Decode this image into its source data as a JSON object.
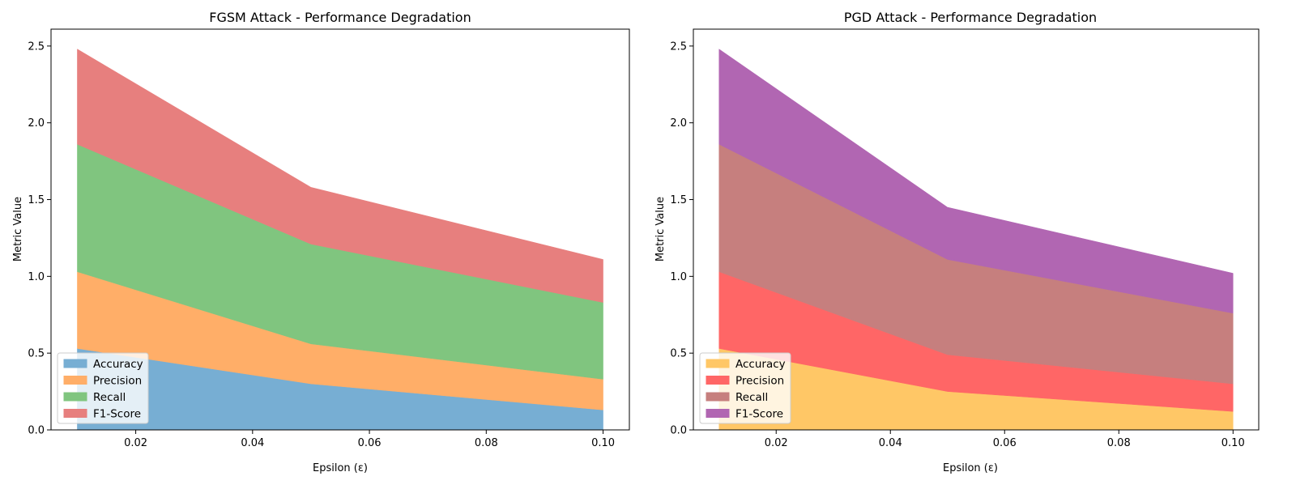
{
  "chart_data": [
    {
      "type": "area",
      "stacked": true,
      "title": "FGSM Attack - Performance Degradation",
      "xlabel": "Epsilon (ε)",
      "ylabel": "Metric Value",
      "x": [
        0.01,
        0.05,
        0.1
      ],
      "xlim": [
        0.0055,
        0.1045
      ],
      "ylim": [
        0,
        2.61
      ],
      "xticks": [
        0.02,
        0.04,
        0.06,
        0.08,
        0.1
      ],
      "xtick_labels": [
        "0.02",
        "0.04",
        "0.06",
        "0.08",
        "0.10"
      ],
      "yticks": [
        0,
        0.5,
        1.0,
        1.5,
        2.0,
        2.5
      ],
      "ytick_labels": [
        "0.0",
        "0.5",
        "1.0",
        "1.5",
        "2.0",
        "2.5"
      ],
      "grid": false,
      "legend_position": "lower-left",
      "series": [
        {
          "name": "Accuracy",
          "values": [
            0.53,
            0.3,
            0.13
          ],
          "color": "#77aed3"
        },
        {
          "name": "Precision",
          "values": [
            0.5,
            0.26,
            0.2
          ],
          "color": "#ffae68"
        },
        {
          "name": "Recall",
          "values": [
            0.83,
            0.65,
            0.5
          ],
          "color": "#80c57f"
        },
        {
          "name": "F1-Score",
          "values": [
            0.62,
            0.37,
            0.28
          ],
          "color": "#e77f7e"
        }
      ]
    },
    {
      "type": "area",
      "stacked": true,
      "title": "PGD Attack - Performance Degradation",
      "xlabel": "Epsilon (ε)",
      "ylabel": "Metric Value",
      "x": [
        0.01,
        0.05,
        0.1
      ],
      "xlim": [
        0.0055,
        0.1045
      ],
      "ylim": [
        0,
        2.61
      ],
      "xticks": [
        0.02,
        0.04,
        0.06,
        0.08,
        0.1
      ],
      "xtick_labels": [
        "0.02",
        "0.04",
        "0.06",
        "0.08",
        "0.10"
      ],
      "yticks": [
        0,
        0.5,
        1.0,
        1.5,
        2.0,
        2.5
      ],
      "ytick_labels": [
        "0.0",
        "0.5",
        "1.0",
        "1.5",
        "2.0",
        "2.5"
      ],
      "grid": false,
      "legend_position": "lower-left",
      "series": [
        {
          "name": "Accuracy",
          "values": [
            0.53,
            0.25,
            0.12
          ],
          "color": "#ffc766"
        },
        {
          "name": "Precision",
          "values": [
            0.5,
            0.24,
            0.18
          ],
          "color": "#ff6666"
        },
        {
          "name": "Recall",
          "values": [
            0.83,
            0.62,
            0.46
          ],
          "color": "#c67f7e"
        },
        {
          "name": "F1-Score",
          "values": [
            0.62,
            0.34,
            0.26
          ],
          "color": "#b166b2"
        }
      ]
    }
  ]
}
